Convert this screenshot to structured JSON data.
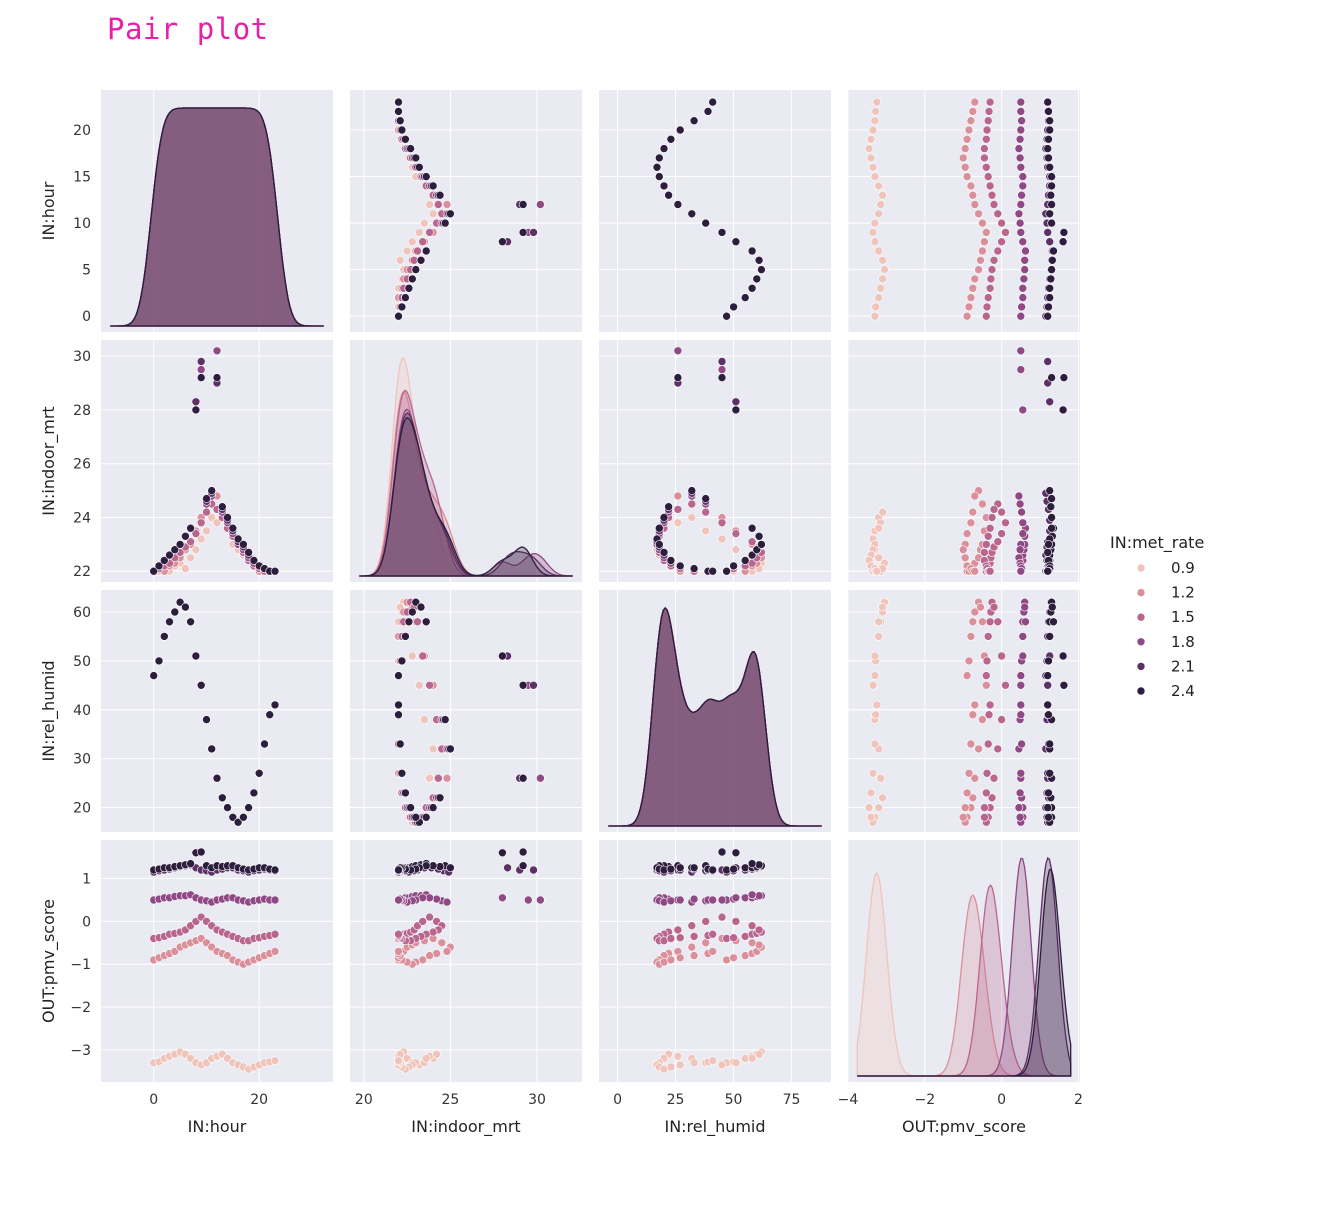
{
  "page": {
    "title": "Pair plot"
  },
  "chart_data": {
    "type": "scatter",
    "variables": [
      "IN:hour",
      "IN:indoor_mrt",
      "IN:rel_humid",
      "OUT:pmv_score"
    ],
    "axes": {
      "IN:hour": {
        "range": [
          -10,
          34
        ],
        "ticks": [
          0,
          20
        ],
        "ticklabels": [
          "0",
          "20"
        ],
        "yticks": [
          0,
          5,
          10,
          15,
          20
        ],
        "yticklabels": [
          "0",
          "5",
          "10",
          "15",
          "20"
        ],
        "yrange": [
          -1.7,
          24.3
        ]
      },
      "IN:indoor_mrt": {
        "range": [
          19.2,
          32.6
        ],
        "ticks": [
          20,
          25,
          30
        ],
        "ticklabels": [
          "20",
          "25",
          "30"
        ],
        "yticks": [
          22,
          24,
          26,
          28,
          30
        ],
        "yticklabels": [
          "22",
          "24",
          "26",
          "28",
          "30"
        ],
        "yrange": [
          21.6,
          30.6
        ]
      },
      "IN:rel_humid": {
        "range": [
          -8,
          92
        ],
        "ticks": [
          0,
          25,
          50,
          75
        ],
        "ticklabels": [
          "0",
          "25",
          "50",
          "75"
        ],
        "yticks": [
          20,
          30,
          40,
          50,
          60
        ],
        "yticklabels": [
          "20",
          "30",
          "40",
          "50",
          "60"
        ],
        "yrange": [
          15,
          64.5
        ]
      },
      "OUT:pmv_score": {
        "range": [
          -4,
          2.04
        ],
        "ticks": [
          -4,
          -2,
          0,
          2
        ],
        "ticklabels": [
          "−4",
          "−2",
          "0",
          "2"
        ],
        "yticks": [
          -3,
          -2,
          -1,
          0,
          1
        ],
        "yticklabels": [
          "−3",
          "−2",
          "−1",
          "0",
          "1"
        ],
        "yrange": [
          -3.75,
          1.9
        ]
      }
    },
    "hue": {
      "title": "IN:met_rate",
      "levels": [
        0.9,
        1.2,
        1.5,
        1.8,
        2.1,
        2.4
      ],
      "labels": [
        "0.9",
        "1.2",
        "1.5",
        "1.8",
        "2.1",
        "2.4"
      ],
      "colors": [
        "#efc4bb",
        "#d9909a",
        "#b8668e",
        "#8f4a85",
        "#5c3166",
        "#2d1e3e"
      ],
      "legend_position": "right"
    },
    "background": "#eaeaf2",
    "grid": true,
    "diagonal": "kde",
    "series": [
      {
        "name": "0.9",
        "hour": [
          0,
          1,
          2,
          3,
          4,
          5,
          6,
          7,
          8,
          9,
          10,
          11,
          12,
          13,
          14,
          15,
          16,
          17,
          18,
          19,
          20,
          21,
          22,
          23
        ],
        "indoor_mrt": [
          22.0,
          22.0,
          22.1,
          22.0,
          22.2,
          22.3,
          22.1,
          22.5,
          22.8,
          23.2,
          23.5,
          24.0,
          23.8,
          24.2,
          23.6,
          23.0,
          22.8,
          22.6,
          22.4,
          22.2,
          22.0,
          22.1,
          22.0,
          22.0
        ],
        "rel_humid": [
          47,
          50,
          55,
          58,
          60,
          62,
          61,
          58,
          51,
          45,
          38,
          32,
          26,
          22,
          20,
          18,
          17,
          18,
          20,
          23,
          27,
          33,
          39,
          41
        ],
        "pmv_score": [
          -3.3,
          -3.28,
          -3.2,
          -3.15,
          -3.1,
          -3.05,
          -3.1,
          -3.2,
          -3.3,
          -3.35,
          -3.3,
          -3.2,
          -3.15,
          -3.1,
          -3.2,
          -3.3,
          -3.35,
          -3.4,
          -3.45,
          -3.4,
          -3.35,
          -3.3,
          -3.28,
          -3.25
        ]
      },
      {
        "name": "1.2",
        "hour": [
          0,
          1,
          2,
          3,
          4,
          5,
          6,
          7,
          8,
          9,
          10,
          11,
          12,
          13,
          14,
          15,
          16,
          17,
          18,
          19,
          20,
          21,
          22,
          23
        ],
        "indoor_mrt": [
          22.0,
          22.1,
          22.0,
          22.2,
          22.3,
          22.5,
          22.8,
          23.0,
          23.5,
          24.0,
          24.5,
          25.0,
          24.8,
          24.2,
          23.8,
          23.4,
          23.0,
          22.8,
          22.5,
          22.2,
          22.0,
          22.1,
          22.0,
          22.0
        ],
        "rel_humid": [
          47,
          50,
          55,
          58,
          60,
          62,
          61,
          58,
          51,
          45,
          38,
          32,
          26,
          22,
          20,
          18,
          17,
          18,
          20,
          23,
          27,
          33,
          39,
          41
        ],
        "pmv_score": [
          -0.9,
          -0.85,
          -0.8,
          -0.75,
          -0.7,
          -0.6,
          -0.55,
          -0.5,
          -0.45,
          -0.4,
          -0.5,
          -0.6,
          -0.7,
          -0.75,
          -0.8,
          -0.9,
          -0.95,
          -1.0,
          -0.95,
          -0.9,
          -0.85,
          -0.8,
          -0.75,
          -0.7
        ]
      },
      {
        "name": "1.5",
        "hour": [
          0,
          1,
          2,
          3,
          4,
          5,
          6,
          7,
          8,
          9,
          10,
          11,
          12,
          13,
          14,
          15,
          16,
          17,
          18,
          19,
          20,
          21,
          22,
          23
        ],
        "indoor_mrt": [
          22.0,
          22.1,
          22.2,
          22.3,
          22.5,
          22.7,
          22.9,
          23.1,
          23.4,
          23.8,
          24.2,
          24.5,
          24.3,
          24.0,
          23.6,
          23.3,
          23.0,
          22.7,
          22.4,
          22.2,
          22.1,
          22.0,
          22.0,
          22.0
        ],
        "rel_humid": [
          47,
          50,
          55,
          58,
          60,
          62,
          61,
          58,
          51,
          45,
          38,
          32,
          26,
          22,
          20,
          18,
          17,
          18,
          20,
          23,
          27,
          33,
          39,
          41
        ],
        "pmv_score": [
          -0.4,
          -0.38,
          -0.35,
          -0.3,
          -0.28,
          -0.25,
          -0.2,
          -0.1,
          0.0,
          0.1,
          0.0,
          -0.1,
          -0.2,
          -0.25,
          -0.3,
          -0.35,
          -0.4,
          -0.45,
          -0.45,
          -0.4,
          -0.38,
          -0.35,
          -0.33,
          -0.3
        ]
      },
      {
        "name": "1.8",
        "hour": [
          0,
          1,
          2,
          3,
          4,
          5,
          6,
          7,
          8,
          9,
          10,
          11,
          12,
          13,
          14,
          15,
          16,
          17,
          18,
          19,
          20,
          21,
          22,
          23
        ],
        "indoor_mrt": [
          22.0,
          22.2,
          22.4,
          22.6,
          22.8,
          23.0,
          23.3,
          23.6,
          28.0,
          29.5,
          24.5,
          24.8,
          30.2,
          24.2,
          23.8,
          23.4,
          23.0,
          22.8,
          22.5,
          22.3,
          22.2,
          22.1,
          22.0,
          22.0
        ],
        "rel_humid": [
          47,
          50,
          55,
          58,
          60,
          62,
          61,
          58,
          51,
          45,
          38,
          32,
          26,
          22,
          20,
          18,
          17,
          18,
          20,
          23,
          27,
          33,
          39,
          41
        ],
        "pmv_score": [
          0.5,
          0.52,
          0.55,
          0.55,
          0.58,
          0.6,
          0.6,
          0.62,
          0.55,
          0.5,
          0.48,
          0.45,
          0.5,
          0.52,
          0.55,
          0.55,
          0.5,
          0.48,
          0.45,
          0.48,
          0.5,
          0.52,
          0.5,
          0.5
        ]
      },
      {
        "name": "2.1",
        "hour": [
          0,
          1,
          2,
          3,
          4,
          5,
          6,
          7,
          8,
          9,
          10,
          11,
          12,
          13,
          14,
          15,
          16,
          17,
          18,
          19,
          20,
          21,
          22,
          23
        ],
        "indoor_mrt": [
          22.0,
          22.2,
          22.4,
          22.6,
          22.8,
          23.0,
          23.3,
          23.6,
          28.3,
          29.8,
          24.6,
          24.9,
          29.0,
          24.3,
          23.9,
          23.5,
          23.1,
          22.9,
          22.6,
          22.4,
          22.2,
          22.1,
          22.0,
          22.0
        ],
        "rel_humid": [
          47,
          50,
          55,
          58,
          60,
          62,
          61,
          58,
          51,
          45,
          38,
          32,
          26,
          22,
          20,
          18,
          17,
          18,
          20,
          23,
          27,
          33,
          39,
          41
        ],
        "pmv_score": [
          1.15,
          1.18,
          1.2,
          1.22,
          1.25,
          1.28,
          1.3,
          1.32,
          1.25,
          1.2,
          1.18,
          1.15,
          1.2,
          1.22,
          1.25,
          1.25,
          1.2,
          1.18,
          1.15,
          1.18,
          1.2,
          1.22,
          1.2,
          1.18
        ]
      },
      {
        "name": "2.4",
        "hour": [
          0,
          1,
          2,
          3,
          4,
          5,
          6,
          7,
          8,
          9,
          10,
          11,
          12,
          13,
          14,
          15,
          16,
          17,
          18,
          19,
          20,
          21,
          22,
          23
        ],
        "indoor_mrt": [
          22.0,
          22.2,
          22.4,
          22.6,
          22.8,
          23.0,
          23.3,
          23.6,
          28.0,
          29.2,
          24.7,
          25.0,
          29.2,
          24.4,
          24.0,
          23.6,
          23.2,
          23.0,
          22.7,
          22.4,
          22.2,
          22.1,
          22.0,
          22.0
        ],
        "rel_humid": [
          47,
          50,
          55,
          58,
          60,
          62,
          61,
          58,
          51,
          45,
          38,
          32,
          26,
          22,
          20,
          18,
          17,
          18,
          20,
          23,
          27,
          33,
          39,
          41
        ],
        "pmv_score": [
          1.2,
          1.22,
          1.25,
          1.25,
          1.28,
          1.3,
          1.32,
          1.35,
          1.6,
          1.62,
          1.3,
          1.25,
          1.3,
          1.28,
          1.3,
          1.3,
          1.25,
          1.22,
          1.2,
          1.22,
          1.25,
          1.25,
          1.22,
          1.2
        ]
      }
    ]
  }
}
